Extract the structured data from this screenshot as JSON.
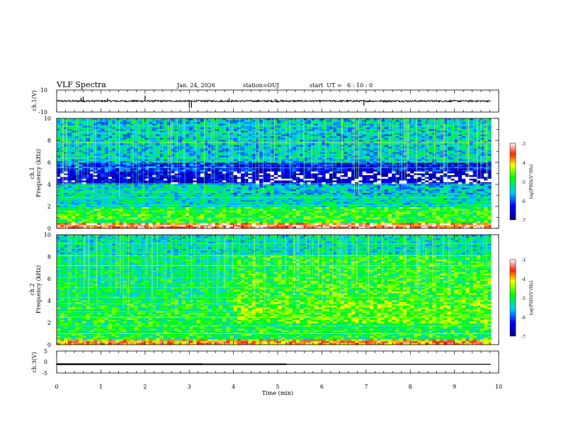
{
  "header": {
    "title": "VLF Spectra",
    "date": "Jan. 24, 2026",
    "station": "station=OUJ",
    "start": "start  UT =   6 : 10 : 0"
  },
  "chart_data": [
    {
      "type": "line",
      "name": "ch1-waveform",
      "ylabel": "ch.1(V)",
      "ylim": [
        -10,
        10
      ],
      "yticks": [
        "10",
        "-10"
      ],
      "baseline": 0,
      "spikes": [
        {
          "t": 0.55,
          "v": 3
        },
        {
          "t": 0.6,
          "v": 4
        },
        {
          "t": 1.15,
          "v": 2.5
        },
        {
          "t": 2.0,
          "v": 5
        },
        {
          "t": 3.0,
          "v": -6
        },
        {
          "t": 3.05,
          "v": -6
        },
        {
          "t": 3.9,
          "v": 2.5
        },
        {
          "t": 4.95,
          "v": 2
        },
        {
          "t": 6.95,
          "v": -4
        }
      ]
    },
    {
      "type": "heatmap",
      "name": "ch1-spectrogram",
      "ylabel_top": "ch.1",
      "ylabel": "Frequency (kHz)",
      "ylim": [
        0,
        10
      ],
      "yticks": [
        "0",
        "2",
        "4",
        "6",
        "8",
        "10"
      ],
      "colorbar": {
        "label": "log(PSD)(V²/Hz)",
        "range": [
          -7,
          -3
        ],
        "ticks": [
          "-3",
          "-4",
          "-5",
          "-6",
          "-7"
        ]
      }
    },
    {
      "type": "heatmap",
      "name": "ch2-spectrogram",
      "ylabel_top": "ch.2",
      "ylabel": "Frequency (kHz)",
      "ylim": [
        0,
        10
      ],
      "yticks": [
        "0",
        "2",
        "4",
        "6",
        "8",
        "10"
      ],
      "colorbar": {
        "label": "log(PSD)(V²/Hz)",
        "range": [
          -7,
          -3
        ],
        "ticks": [
          "-3",
          "-4",
          "-5",
          "-6",
          "-7"
        ]
      }
    },
    {
      "type": "line",
      "name": "ch3-waveform",
      "ylabel": "ch.3(V)",
      "ylim": [
        -5,
        5
      ],
      "yticks": [
        "5",
        "0",
        "-5"
      ],
      "baseline": -1,
      "xlabel": "Time (min)",
      "xlim": [
        0,
        10
      ],
      "xticks": [
        "0",
        "1",
        "2",
        "3",
        "4",
        "5",
        "6",
        "7",
        "8",
        "9",
        "10"
      ],
      "data_end": 9.82
    }
  ]
}
